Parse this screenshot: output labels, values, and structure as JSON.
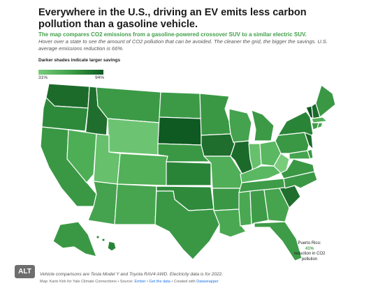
{
  "title": "Everywhere in the U.S., driving an EV emits less carbon pollution than a gasoline vehicle.",
  "subtitle": "The map compares CO2 emissions from a gasoline-powered crossover SUV to a similar electric SUV.",
  "description": "Hover over a state to see the amount of CO2 pollution that can be avoided. The cleaner the grid, the bigger the savings. U.S. average emissions reduction is 66%.",
  "legend": {
    "title": "Darker shades indicate larger savings",
    "min": "31%",
    "max": "94%",
    "colors": [
      "#79cc7c",
      "#0d5a22"
    ]
  },
  "puerto_rico": {
    "label": "Puerto Rico:",
    "value": "41%",
    "suffix": "reduction in CO2 pollution"
  },
  "alt_button": "ALT",
  "footer": {
    "note": "Vehicle comparisons are Tesla Model Y and Toyota RAV4 AWD. Electricity data is for 2022.",
    "credit_prefix": "Map: Karin Kirk for Yale Climate Connections • Source:",
    "source_link": "Ember",
    "sep": "•",
    "data_link": "Get the data",
    "created_prefix": "• Created with",
    "dw_link": "Datawrapper"
  }
}
